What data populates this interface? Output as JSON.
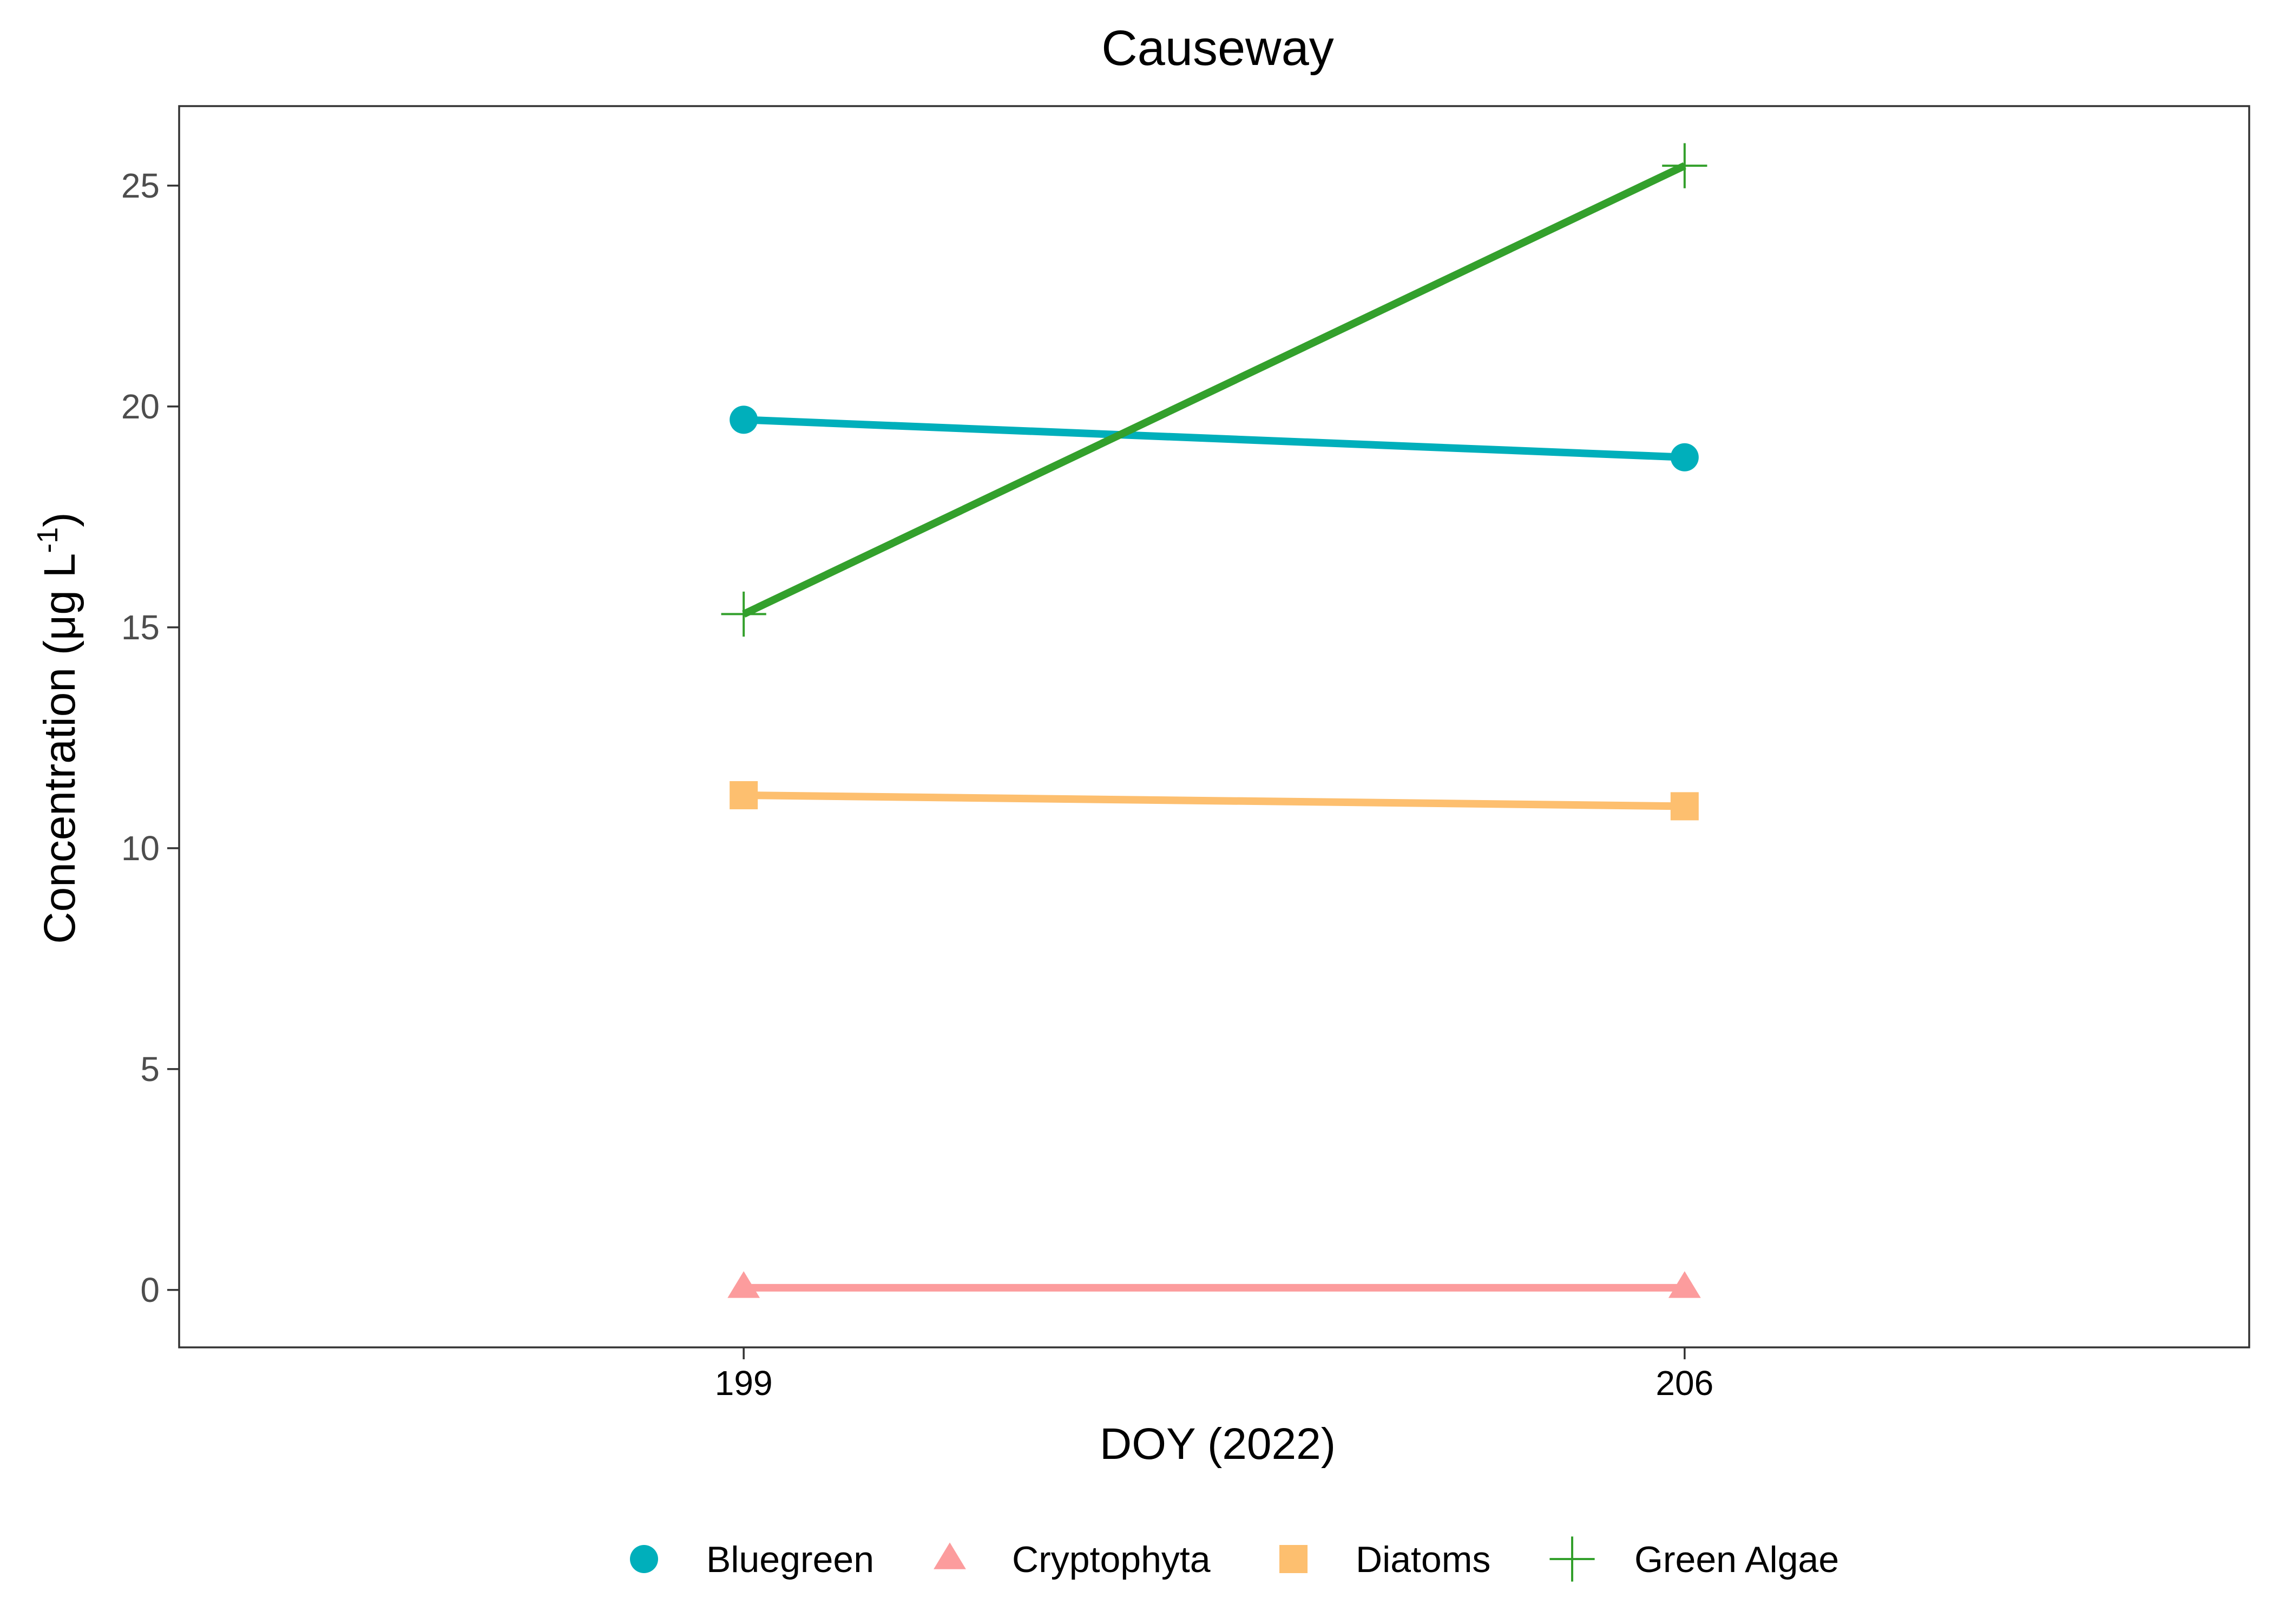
{
  "chart_data": {
    "type": "line",
    "title": "Causeway",
    "xlabel": "DOY (2022)",
    "ylabel_main": "Concentration (μg L",
    "ylabel_sup": "-1",
    "ylabel_end": ")",
    "x": [
      199,
      206
    ],
    "x_tick_labels": [
      "199",
      "206"
    ],
    "xlim": [
      194.8,
      210.2
    ],
    "ylim": [
      -1.3,
      26.8
    ],
    "y_ticks": [
      0,
      5,
      10,
      15,
      20,
      25
    ],
    "y_tick_labels": [
      "0",
      "5",
      "10",
      "15",
      "20",
      "25"
    ],
    "grid": false,
    "legend_position": "bottom",
    "series": [
      {
        "name": "Bluegreen",
        "values": [
          19.7,
          18.85
        ],
        "color": "#00AFBB",
        "marker": "circle"
      },
      {
        "name": "Cryptophyta",
        "values": [
          0.05,
          0.05
        ],
        "color": "#FC9C9D",
        "marker": "triangle"
      },
      {
        "name": "Diatoms",
        "values": [
          11.2,
          10.95
        ],
        "color": "#FDBF6F",
        "marker": "square"
      },
      {
        "name": "Green Algae",
        "values": [
          15.3,
          25.45
        ],
        "color": "#33A02C",
        "marker": "plus"
      }
    ]
  }
}
